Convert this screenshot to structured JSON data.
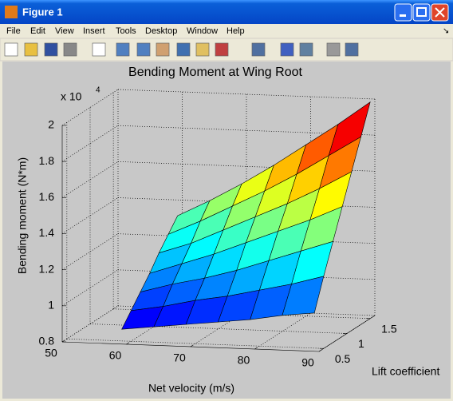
{
  "window": {
    "title": "Figure 1",
    "menu": [
      "File",
      "Edit",
      "View",
      "Insert",
      "Tools",
      "Desktop",
      "Window",
      "Help"
    ]
  },
  "chart_data": {
    "type": "surface",
    "title": "Bending Moment at Wing Root",
    "xlabel": "Net velocity (m/s)",
    "ylabel": "Lift coefficient",
    "zlabel": "Bending moment (N*m)",
    "z_multiplier": "x 10",
    "z_exponent": "4",
    "x": [
      60,
      65,
      70,
      75,
      80,
      85,
      90
    ],
    "y": [
      0.3,
      0.5,
      0.7,
      0.9,
      1.1,
      1.3,
      1.5
    ],
    "z": [
      [
        0.9,
        0.92,
        0.94,
        0.96,
        0.98,
        1.01,
        1.03
      ],
      [
        0.97,
        1.0,
        1.04,
        1.07,
        1.11,
        1.15,
        1.2
      ],
      [
        1.04,
        1.09,
        1.13,
        1.18,
        1.24,
        1.3,
        1.36
      ],
      [
        1.11,
        1.17,
        1.23,
        1.3,
        1.37,
        1.44,
        1.52
      ],
      [
        1.19,
        1.25,
        1.33,
        1.41,
        1.49,
        1.58,
        1.68
      ],
      [
        1.26,
        1.34,
        1.43,
        1.52,
        1.62,
        1.73,
        1.84
      ],
      [
        1.33,
        1.42,
        1.52,
        1.63,
        1.75,
        1.87,
        2.0
      ]
    ],
    "xlim": [
      50,
      90
    ],
    "ylim": [
      0.4,
      1.6
    ],
    "zlim": [
      0.8,
      2
    ],
    "xticks": [
      50,
      60,
      70,
      80,
      90
    ],
    "yticks": [
      0.5,
      1,
      1.5
    ],
    "zticks": [
      0.8,
      1,
      1.2,
      1.4,
      1.6,
      1.8,
      2
    ],
    "colormap": "jet",
    "grid": true
  }
}
